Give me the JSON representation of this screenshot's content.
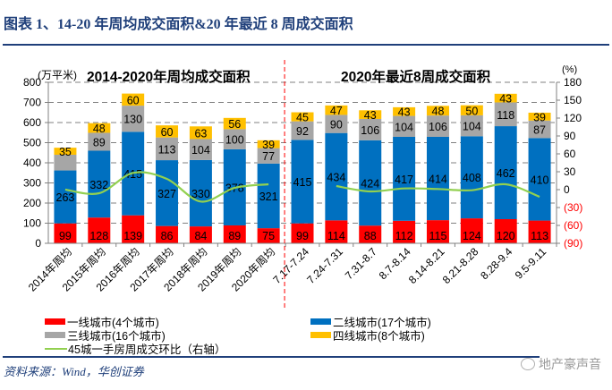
{
  "figure": {
    "title": "图表 1、14-20 年周均成交面积&20 年最近 8 周成交面积",
    "source": "资料来源：Wind，华创证券",
    "watermark": "地产豪声音",
    "watermark_icon": "wechat-icon"
  },
  "chart_data": {
    "type": "bar",
    "stacked": true,
    "title_left": "2014-2020年周均成交面积",
    "title_right": "2020年最近8周成交面积",
    "ylabel": "(万平米)",
    "y2label": "(%)",
    "ylim": [
      0,
      800
    ],
    "yticks": [
      "0",
      "100",
      "200",
      "300",
      "400",
      "500",
      "600",
      "700",
      "800"
    ],
    "y2lim": [
      -90,
      180
    ],
    "y2ticks": [
      "(90)",
      "(60)",
      "(30)",
      "0",
      "30",
      "60",
      "90",
      "120",
      "150",
      "180"
    ],
    "y2tick_values": [
      -90,
      -60,
      -30,
      0,
      30,
      60,
      90,
      120,
      150,
      180
    ],
    "grid": "dashed-horizontal",
    "divider_after_index": 6,
    "categories": [
      "2014年周均",
      "2015年周均",
      "2016年周均",
      "2017年周均",
      "2018年周均",
      "2019年周均",
      "2020年周均",
      "7.17-7.24",
      "7.24-7.31",
      "7.31-8.7",
      "8.7-8.14",
      "8.14-8.21",
      "8.21-8.28",
      "8.28-9.4",
      "9.5-9.11"
    ],
    "series": [
      {
        "name": "一线城市(4个城市)",
        "color": "#ff0000",
        "values": [
          99,
          128,
          139,
          86,
          84,
          89,
          75,
          99,
          114,
          88,
          112,
          115,
          124,
          120,
          113
        ],
        "labels": [
          "99",
          "128",
          "139",
          "86",
          "84",
          "89",
          "75",
          "99",
          "114",
          "88",
          "112",
          "115",
          "124",
          "120",
          "113"
        ]
      },
      {
        "name": "二线城市(17个城市)",
        "color": "#0070c0",
        "values": [
          263,
          332,
          415,
          327,
          330,
          378,
          321,
          415,
          434,
          424,
          417,
          414,
          408,
          462,
          410
        ],
        "labels": [
          "263",
          "332",
          "415",
          "327",
          "330",
          "378",
          "321",
          "415",
          "434",
          "424",
          "417",
          "414",
          "408",
          "462",
          "410"
        ]
      },
      {
        "name": "三线城市(16个城市)",
        "color": "#a6a6a6",
        "values": [
          78,
          89,
          130,
          113,
          104,
          100,
          77,
          92,
          90,
          106,
          104,
          106,
          104,
          118,
          87
        ],
        "labels": [
          "",
          "89",
          "130",
          "113",
          "104",
          "100",
          "77",
          "92",
          "90",
          "106",
          "104",
          "106",
          "104",
          "118",
          "87"
        ]
      },
      {
        "name": "四线城市(8个城市)",
        "color": "#ffc000",
        "values": [
          35,
          48,
          60,
          60,
          63,
          56,
          39,
          45,
          47,
          43,
          43,
          48,
          50,
          43,
          39
        ],
        "labels": [
          "35",
          "48",
          "60",
          "60",
          "63",
          "56",
          "39",
          "45",
          "47",
          "43",
          "43",
          "48",
          "50",
          "43",
          "39"
        ]
      }
    ],
    "line_series": {
      "name": "45城一手房周成交环比（右轴）",
      "color": "#92d050",
      "axis": "right",
      "segments": [
        {
          "from_index": 0,
          "values": [
            0,
            -6,
            28,
            18,
            -20,
            3,
            9
          ]
        },
        {
          "from_index": 8,
          "values": [
            6,
            -3,
            2,
            1,
            -1,
            9,
            -12
          ]
        }
      ]
    },
    "legend": {
      "placement": "bottom",
      "items": [
        {
          "label": "一线城市(4个城市)",
          "color": "#ff0000",
          "kind": "bar"
        },
        {
          "label": "二线城市(17个城市)",
          "color": "#0070c0",
          "kind": "bar"
        },
        {
          "label": "三线城市(16个城市)",
          "color": "#a6a6a6",
          "kind": "bar"
        },
        {
          "label": "四线城市(8个城市)",
          "color": "#ffc000",
          "kind": "bar"
        },
        {
          "label": "45城一手房周成交环比（右轴）",
          "color": "#92d050",
          "kind": "line"
        }
      ]
    }
  }
}
